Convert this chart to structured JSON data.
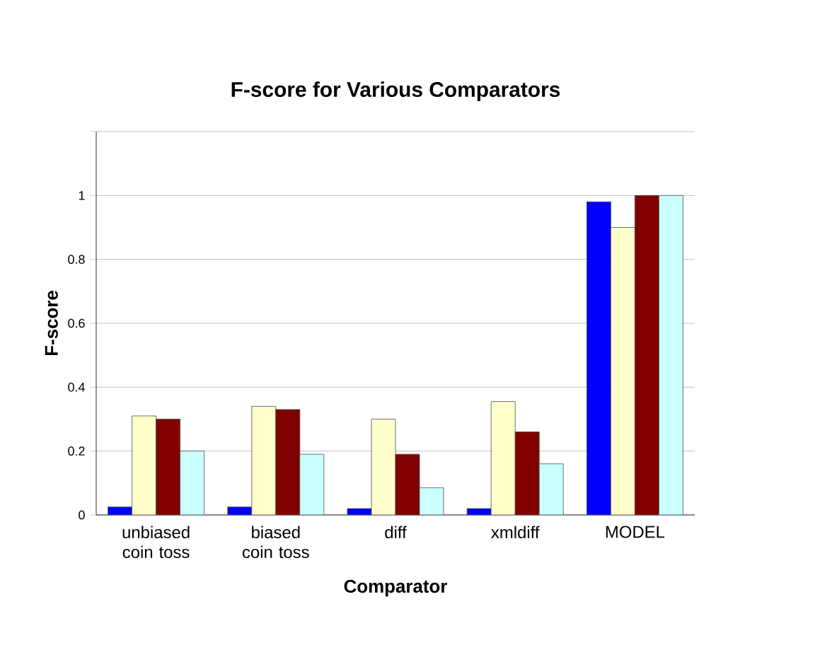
{
  "chart_data": {
    "type": "bar",
    "title": "F-score for Various Comparators",
    "xlabel": "Comparator",
    "ylabel": "F-score",
    "categories": [
      "unbiased coin toss",
      "biased coin toss",
      "diff",
      "xmldiff",
      "MODEL"
    ],
    "series": [
      {
        "color": "#0000ff",
        "values": [
          0.025,
          0.025,
          0.02,
          0.02,
          0.98
        ]
      },
      {
        "color": "#ffffcc",
        "values": [
          0.31,
          0.34,
          0.3,
          0.355,
          0.9
        ]
      },
      {
        "color": "#800000",
        "values": [
          0.3,
          0.33,
          0.19,
          0.26,
          1.0
        ]
      },
      {
        "color": "#ccffff",
        "values": [
          0.2,
          0.19,
          0.085,
          0.16,
          1.0
        ]
      }
    ],
    "ylim": [
      0,
      1.2
    ],
    "yticks": [
      0,
      0.2,
      0.4,
      0.6,
      0.8,
      1,
      {
        "value": 1.2,
        "label": null
      }
    ],
    "grid": "y"
  }
}
